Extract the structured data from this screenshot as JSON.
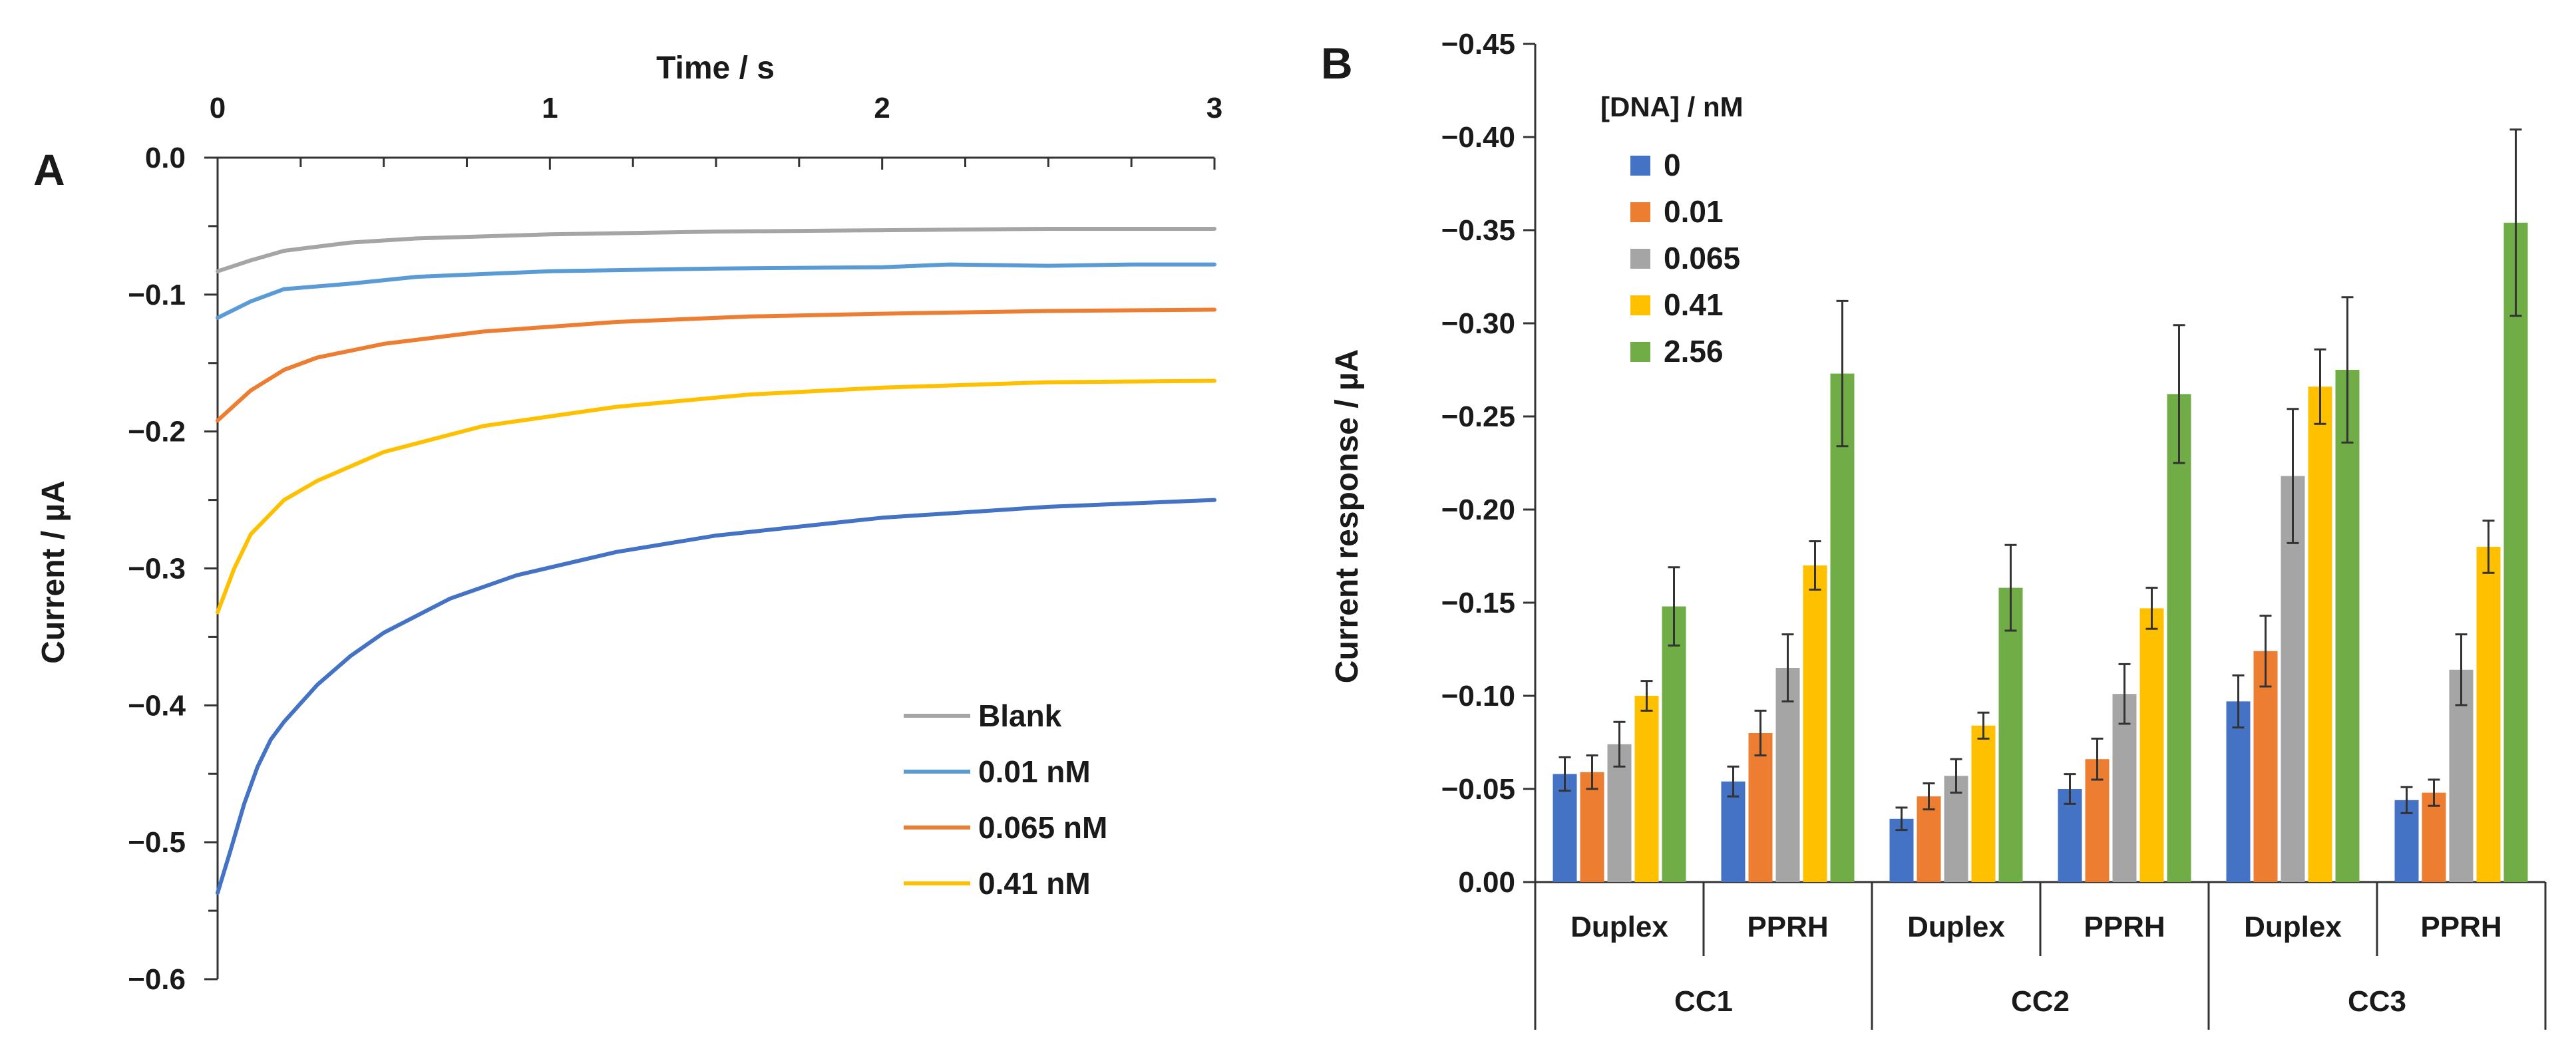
{
  "chart_data": [
    {
      "panel": "A",
      "type": "line",
      "title": "",
      "xlabel": "Time / s",
      "ylabel": "Current / µA",
      "xlim": [
        0,
        3
      ],
      "ylim": [
        -0.6,
        0.0
      ],
      "xticks": [
        "0",
        "1",
        "2",
        "3"
      ],
      "yticks": [
        "0.0",
        "−0.1",
        "−0.2",
        "−0.3",
        "−0.4",
        "−0.5",
        "−0.6"
      ],
      "x_axis_position": "top",
      "grid": false,
      "legend_position": "bottom-right",
      "series": [
        {
          "name": "Blank",
          "color": "#A5A5A5",
          "points": [
            [
              0,
              -0.083
            ],
            [
              0.1,
              -0.075
            ],
            [
              0.2,
              -0.068
            ],
            [
              0.4,
              -0.062
            ],
            [
              0.6,
              -0.059
            ],
            [
              1.0,
              -0.056
            ],
            [
              1.5,
              -0.054
            ],
            [
              2.0,
              -0.053
            ],
            [
              2.5,
              -0.052
            ],
            [
              3.0,
              -0.052
            ]
          ]
        },
        {
          "name": "0.01 nM",
          "color": "#5B9BD5",
          "points": [
            [
              0,
              -0.117
            ],
            [
              0.1,
              -0.105
            ],
            [
              0.2,
              -0.096
            ],
            [
              0.4,
              -0.092
            ],
            [
              0.6,
              -0.087
            ],
            [
              1.0,
              -0.083
            ],
            [
              1.5,
              -0.081
            ],
            [
              2.0,
              -0.08
            ],
            [
              2.2,
              -0.078
            ],
            [
              2.5,
              -0.079
            ],
            [
              2.75,
              -0.078
            ],
            [
              3.0,
              -0.078
            ]
          ]
        },
        {
          "name": "0.065 nM",
          "color": "#ED7D31",
          "points": [
            [
              0,
              -0.192
            ],
            [
              0.1,
              -0.17
            ],
            [
              0.2,
              -0.155
            ],
            [
              0.3,
              -0.146
            ],
            [
              0.5,
              -0.136
            ],
            [
              0.8,
              -0.127
            ],
            [
              1.2,
              -0.12
            ],
            [
              1.6,
              -0.116
            ],
            [
              2.0,
              -0.114
            ],
            [
              2.5,
              -0.112
            ],
            [
              3.0,
              -0.111
            ]
          ]
        },
        {
          "name": "0.41 nM",
          "color": "#FFC000",
          "points": [
            [
              0,
              -0.332
            ],
            [
              0.05,
              -0.3
            ],
            [
              0.1,
              -0.275
            ],
            [
              0.2,
              -0.25
            ],
            [
              0.3,
              -0.236
            ],
            [
              0.5,
              -0.215
            ],
            [
              0.8,
              -0.196
            ],
            [
              1.2,
              -0.182
            ],
            [
              1.6,
              -0.173
            ],
            [
              2.0,
              -0.168
            ],
            [
              2.5,
              -0.164
            ],
            [
              3.0,
              -0.163
            ]
          ]
        },
        {
          "name": "",
          "color": "#4472C4",
          "points": [
            [
              0,
              -0.537
            ],
            [
              0.04,
              -0.505
            ],
            [
              0.08,
              -0.472
            ],
            [
              0.12,
              -0.445
            ],
            [
              0.16,
              -0.425
            ],
            [
              0.2,
              -0.412
            ],
            [
              0.3,
              -0.385
            ],
            [
              0.4,
              -0.364
            ],
            [
              0.5,
              -0.347
            ],
            [
              0.7,
              -0.322
            ],
            [
              0.9,
              -0.305
            ],
            [
              1.2,
              -0.288
            ],
            [
              1.5,
              -0.276
            ],
            [
              2.0,
              -0.263
            ],
            [
              2.5,
              -0.255
            ],
            [
              3.0,
              -0.25
            ]
          ]
        }
      ]
    },
    {
      "panel": "B",
      "type": "bar",
      "title": "",
      "xlabel": "",
      "ylabel": "Current response / µA",
      "ylim": [
        0,
        -0.45
      ],
      "yticks": [
        "0.00",
        "−0.05",
        "−0.10",
        "−0.15",
        "−0.20",
        "−0.25",
        "−0.30",
        "−0.35",
        "−0.40",
        "−0.45"
      ],
      "legend_title": "[DNA] / nM",
      "legend_position": "top-left",
      "grid": false,
      "categories": [
        "Duplex",
        "PPRH",
        "Duplex",
        "PPRH",
        "Duplex",
        "PPRH"
      ],
      "groups": [
        "CC1",
        "CC2",
        "CC3"
      ],
      "series": [
        {
          "name": "0",
          "color": "#4472C4",
          "values": [
            -0.058,
            -0.054,
            -0.034,
            -0.05,
            -0.097,
            -0.044
          ],
          "errors": [
            0.009,
            0.008,
            0.006,
            0.008,
            0.014,
            0.007
          ]
        },
        {
          "name": "0.01",
          "color": "#ED7D31",
          "values": [
            -0.059,
            -0.08,
            -0.046,
            -0.066,
            -0.124,
            -0.048
          ],
          "errors": [
            0.009,
            0.012,
            0.007,
            0.011,
            0.019,
            0.007
          ]
        },
        {
          "name": "0.065",
          "color": "#A5A5A5",
          "values": [
            -0.074,
            -0.115,
            -0.057,
            -0.101,
            -0.218,
            -0.114
          ],
          "errors": [
            0.012,
            0.018,
            0.009,
            0.016,
            0.036,
            0.019
          ]
        },
        {
          "name": "0.41",
          "color": "#FFC000",
          "values": [
            -0.1,
            -0.17,
            -0.084,
            -0.147,
            -0.266,
            -0.18
          ],
          "errors": [
            0.008,
            0.013,
            0.007,
            0.011,
            0.02,
            0.014
          ]
        },
        {
          "name": "2.56",
          "color": "#70AD47",
          "values": [
            -0.148,
            -0.273,
            -0.158,
            -0.262,
            -0.275,
            -0.354
          ],
          "errors": [
            0.021,
            0.039,
            0.023,
            0.037,
            0.039,
            0.05
          ]
        }
      ]
    }
  ]
}
